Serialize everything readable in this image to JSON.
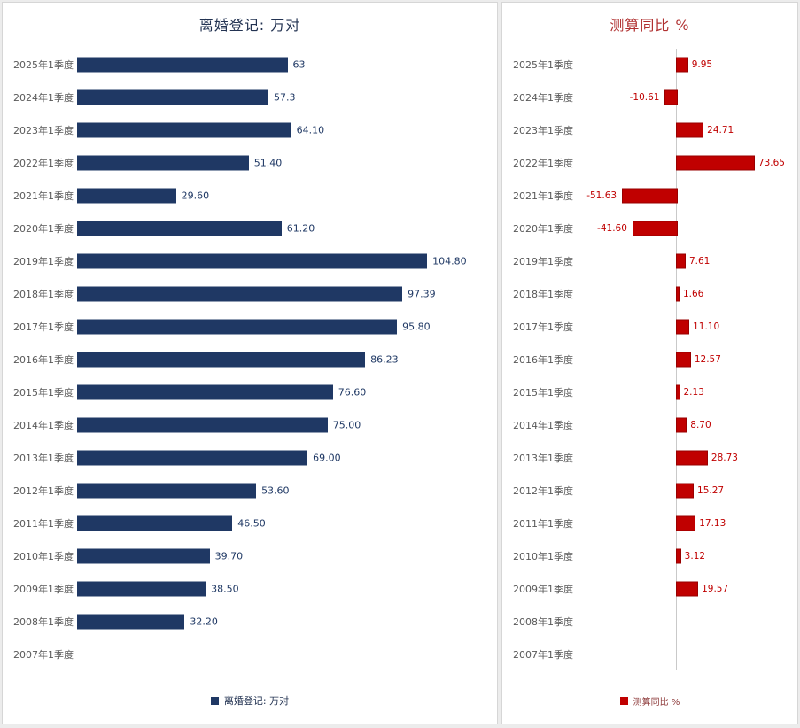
{
  "page": {
    "background_color": "#ececec",
    "panel_background": "#ffffff"
  },
  "chart_data": [
    {
      "type": "bar",
      "orientation": "horizontal",
      "title": "离婚登记: 万对",
      "legend": "离婚登记: 万对",
      "accent_color": "#1F3864",
      "title_color": "#233352",
      "value_label_color": "#1F3864",
      "category_label_color": "#595959",
      "xlim": [
        0,
        110
      ],
      "grid": false,
      "legend_position": "bottom",
      "categories": [
        "2025年1季度",
        "2024年1季度",
        "2023年1季度",
        "2022年1季度",
        "2021年1季度",
        "2020年1季度",
        "2019年1季度",
        "2018年1季度",
        "2017年1季度",
        "2016年1季度",
        "2015年1季度",
        "2014年1季度",
        "2013年1季度",
        "2012年1季度",
        "2011年1季度",
        "2010年1季度",
        "2009年1季度",
        "2008年1季度",
        "2007年1季度"
      ],
      "values": [
        63,
        57.3,
        64.1,
        51.4,
        29.6,
        61.2,
        104.8,
        97.39,
        95.8,
        86.23,
        76.6,
        75.0,
        69.0,
        53.6,
        46.5,
        39.7,
        38.5,
        32.2,
        null
      ],
      "labels": [
        "63",
        "57.3",
        "64.10",
        "51.40",
        "29.60",
        "61.20",
        "104.80",
        "97.39",
        "95.80",
        "86.23",
        "76.60",
        "75.00",
        "69.00",
        "53.60",
        "46.50",
        "39.70",
        "38.50",
        "32.20",
        ""
      ]
    },
    {
      "type": "bar",
      "orientation": "horizontal",
      "title": "测算同比 %",
      "legend": "测算同比 %",
      "accent_color": "#C00000",
      "bar_border_color": "#990000",
      "title_color": "#B03030",
      "value_label_color": "#C00000",
      "category_label_color": "#595959",
      "xlim": [
        -60,
        80
      ],
      "grid": false,
      "legend_position": "bottom",
      "categories": [
        "2025年1季度",
        "2024年1季度",
        "2023年1季度",
        "2022年1季度",
        "2021年1季度",
        "2020年1季度",
        "2019年1季度",
        "2018年1季度",
        "2017年1季度",
        "2016年1季度",
        "2015年1季度",
        "2014年1季度",
        "2013年1季度",
        "2012年1季度",
        "2011年1季度",
        "2010年1季度",
        "2009年1季度",
        "2008年1季度",
        "2007年1季度"
      ],
      "values": [
        9.95,
        -10.61,
        24.71,
        73.65,
        -51.63,
        -41.6,
        7.61,
        1.66,
        11.1,
        12.57,
        2.13,
        8.7,
        28.73,
        15.27,
        17.13,
        3.12,
        19.57,
        null,
        null
      ],
      "labels": [
        "9.95",
        "-10.61",
        "24.71",
        "73.65",
        "-51.63",
        "-41.60",
        "7.61",
        "1.66",
        "11.10",
        "12.57",
        "2.13",
        "8.70",
        "28.73",
        "15.27",
        "17.13",
        "3.12",
        "19.57",
        "",
        ""
      ]
    }
  ]
}
